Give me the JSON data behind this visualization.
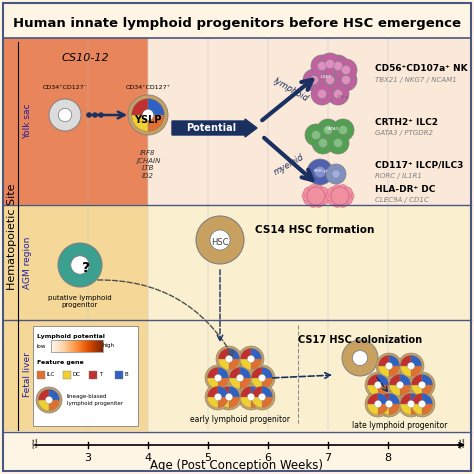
{
  "title": "Human innate lymphoid progenitors before HSC emergence",
  "bg_color": "#FEF5E4",
  "border_color": "#4B5680",
  "xlabel": "Age (Post Conception Weeks)",
  "ylabel": "Hematopoietic Site",
  "x_ticks": [
    3,
    4,
    5,
    6,
    7,
    8
  ],
  "yolk_sac_orange": "#E8855A",
  "yolk_sac_cream": "#FAE8D8",
  "agm_tan": "#F5D898",
  "fetal_tan": "#F5D898",
  "right_cream": "#F8F2E8",
  "cs10_12_label": "CS10-12",
  "yslp_label": "YSLP",
  "yslp_genes": "IRF8\nJCHAIN\nLTB\nID2",
  "potential_label": "Potential",
  "lymphoid_label": "lymphoid",
  "myeloid_label": "myeloid",
  "nk_label": "CD56⁺CD107a⁺ NK",
  "nk_genes": "TBX21 / NKG7 / NCAM1",
  "ilc2_label": "CRTH2⁺ ILC2",
  "ilc2_genes": "GATA3 / PTGDR2",
  "ilcp_label": "CD117⁺ ILCP/ILC3",
  "ilcp_genes": "RORC / IL1R1",
  "dc_label": "HLA-DR⁺ DC",
  "dc_genes": "CLEC9A / CD1C",
  "hsc14_label": "CS14 HSC formation",
  "hsc_label": "HSC",
  "hsc17_label": "CS17 HSC colonization",
  "putative_label": "putative lymphoid\nprogenitor",
  "early_label": "early lymphoid progenitor",
  "late_label": "late lymphoid progenitor",
  "lymphoid_potential_label": "Lymphoid potential",
  "low_label": "low",
  "high_label": "high",
  "feature_gene_label": "Feature gene",
  "lineage_label": "lineage-biased\nlymphoid progeniter",
  "cd34_neg_label": "CD34⁺CD127⁻",
  "cd34_pos_label": "CD34⁺CD127⁺",
  "arrow_color": "#1A3060",
  "purple_cell": "#C060A0",
  "purple_light": "#E090C0",
  "green_cell": "#50A050",
  "green_light": "#80C080",
  "blue_cell": "#5060B0",
  "blue_light": "#8090D0",
  "pink_cell": "#F090A0",
  "tan_cell": "#C8A060",
  "teal_cell": "#3BA090",
  "feat_ilc": "#E07030",
  "feat_dc": "#F0D030",
  "feat_t": "#C03030",
  "feat_b": "#3060C0"
}
